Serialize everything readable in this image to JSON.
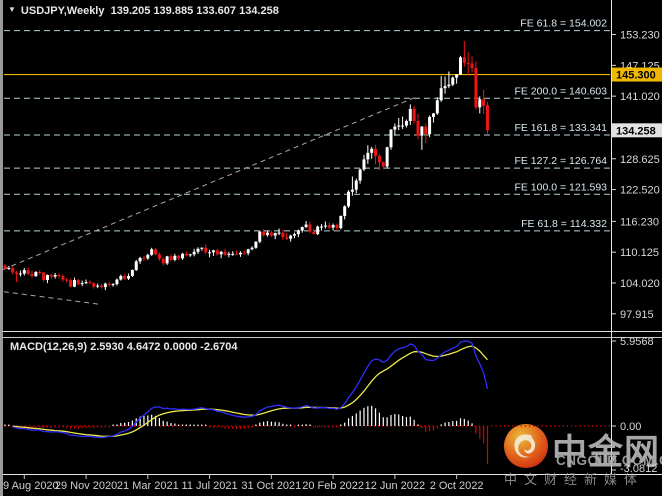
{
  "window": {
    "symbol_label": "USDJPY,Weekly",
    "ohlc_text": "139.205 139.885 133.607 134.258"
  },
  "price_axis": {
    "yellow_box": {
      "text": "145.300",
      "value": 145.3
    },
    "current_box": {
      "text": "134.258",
      "value": 134.258
    }
  },
  "watermark": {
    "brand": "中金网",
    "url": "CNGOLD.COM.CN",
    "tagline": "中文财经新媒体",
    "logo_name": "cngold-flame-logo"
  },
  "colors": {
    "up_candle": "#ffffff",
    "down_candle": "#ee1515",
    "fib_line": "#b9d2da",
    "fib_label": "#d9e8ee",
    "trendline": "#a6a6a6",
    "yellow_line": "#efb700",
    "current_box_bg": "#e2e2e2",
    "axis_text": "#d8d8d8",
    "macd_main": "#2e2eff",
    "macd_signal": "#ece84d",
    "hist_pos": "#ffffff",
    "hist_neg": "#d40000",
    "zero_line": "#cc0000"
  },
  "chart_data": {
    "type": "candlestick",
    "symbol": "USDJPY",
    "timeframe": "Weekly",
    "last_ohlc": {
      "open": 139.205,
      "high": 139.885,
      "low": 133.607,
      "close": 134.258
    },
    "price_axis_ticks": [
      "153.230",
      "147.125",
      "141.020",
      "128.625",
      "122.520",
      "116.230",
      "110.125",
      "104.020",
      "97.915"
    ],
    "fibonacci_expansion": [
      {
        "label": "FE 61.8 = 154.002",
        "price": 154.002
      },
      {
        "label": "FE 200.0 = 140.603",
        "price": 140.603
      },
      {
        "label": "FE 161.8 = 133.341",
        "price": 133.341
      },
      {
        "label": "FE 127.2 = 126.764",
        "price": 126.764
      },
      {
        "label": "FE 100.0 = 121.593",
        "price": 121.593
      },
      {
        "label": "FE 61.8 = 114.332",
        "price": 114.332
      }
    ],
    "horizontal_line_price": 145.3,
    "date_ticks": {
      "labels": [
        "9 Aug 2020",
        "29 Nov 2020",
        "21 Mar 2021",
        "11 Jul 2021",
        "31 Oct 2021",
        "20 Feb 2022",
        "12 Jun 2022",
        "2 Oct 2022"
      ],
      "week_indices": [
        5,
        21,
        37,
        53,
        69,
        85,
        101,
        117
      ]
    },
    "trendlines": [
      {
        "from_week": -0.5,
        "from_price": 106.7,
        "to_week": 106,
        "to_price": 140.7,
        "style": "dashed"
      },
      {
        "from_week": -0.3,
        "from_price": 102.3,
        "to_week": 24.6,
        "to_price": 99.8,
        "style": "dashed"
      }
    ],
    "candles_ohlc": [
      [
        107.5,
        107.8,
        106.6,
        106.9
      ],
      [
        106.9,
        107.4,
        106.6,
        107.0
      ],
      [
        107.0,
        107.3,
        105.7,
        106.1
      ],
      [
        106.1,
        106.4,
        104.2,
        105.8
      ],
      [
        105.8,
        106.5,
        105.3,
        105.9
      ],
      [
        105.9,
        107.0,
        105.5,
        106.6
      ],
      [
        106.6,
        107.1,
        105.6,
        105.8
      ],
      [
        105.8,
        106.5,
        105.1,
        105.4
      ],
      [
        105.4,
        106.4,
        105.2,
        106.2
      ],
      [
        106.2,
        106.6,
        105.6,
        106.1
      ],
      [
        106.1,
        106.2,
        104.3,
        104.6
      ],
      [
        104.6,
        105.7,
        104.0,
        105.6
      ],
      [
        105.6,
        105.8,
        104.9,
        105.3
      ],
      [
        105.3,
        106.0,
        104.9,
        105.6
      ],
      [
        105.6,
        105.9,
        104.9,
        105.4
      ],
      [
        105.4,
        105.7,
        104.3,
        104.7
      ],
      [
        104.7,
        105.1,
        104.1,
        104.6
      ],
      [
        104.6,
        104.9,
        103.2,
        103.3
      ],
      [
        103.3,
        105.1,
        103.2,
        104.6
      ],
      [
        104.6,
        104.8,
        103.6,
        103.8
      ],
      [
        103.8,
        104.5,
        103.4,
        104.0
      ],
      [
        104.0,
        104.7,
        103.8,
        104.2
      ],
      [
        104.2,
        104.6,
        103.8,
        104.0
      ],
      [
        104.0,
        104.2,
        102.9,
        103.3
      ],
      [
        103.3,
        103.9,
        103.0,
        103.5
      ],
      [
        103.5,
        103.8,
        102.9,
        103.2
      ],
      [
        103.2,
        104.1,
        102.6,
        103.9
      ],
      [
        103.9,
        104.2,
        103.2,
        103.7
      ],
      [
        103.7,
        104.0,
        103.3,
        103.8
      ],
      [
        103.8,
        104.9,
        103.5,
        104.7
      ],
      [
        104.7,
        105.7,
        104.5,
        105.4
      ],
      [
        105.4,
        105.8,
        104.6,
        104.9
      ],
      [
        104.9,
        105.9,
        104.6,
        105.4
      ],
      [
        105.4,
        106.7,
        105.2,
        106.6
      ],
      [
        106.6,
        108.6,
        106.4,
        108.3
      ],
      [
        108.3,
        109.2,
        107.8,
        109.0
      ],
      [
        109.0,
        109.4,
        108.4,
        108.9
      ],
      [
        108.9,
        109.8,
        108.6,
        109.6
      ],
      [
        109.6,
        111.0,
        109.4,
        110.7
      ],
      [
        110.7,
        110.9,
        109.5,
        109.7
      ],
      [
        109.7,
        110.1,
        108.4,
        108.8
      ],
      [
        108.8,
        109.1,
        107.5,
        107.9
      ],
      [
        107.9,
        109.4,
        107.6,
        109.3
      ],
      [
        109.3,
        109.7,
        108.3,
        108.6
      ],
      [
        108.6,
        109.8,
        108.3,
        109.4
      ],
      [
        109.4,
        109.6,
        108.6,
        108.9
      ],
      [
        108.9,
        110.0,
        108.6,
        109.8
      ],
      [
        109.8,
        110.3,
        109.3,
        109.5
      ],
      [
        109.5,
        109.8,
        109.2,
        109.7
      ],
      [
        109.7,
        110.8,
        109.3,
        110.2
      ],
      [
        110.2,
        111.1,
        109.8,
        110.8
      ],
      [
        110.8,
        111.1,
        110.4,
        111.0
      ],
      [
        111.0,
        111.7,
        109.8,
        110.1
      ],
      [
        110.1,
        110.6,
        109.1,
        110.1
      ],
      [
        110.1,
        110.6,
        109.4,
        110.5
      ],
      [
        110.5,
        110.8,
        109.4,
        109.7
      ],
      [
        109.7,
        110.4,
        108.9,
        110.2
      ],
      [
        110.2,
        110.8,
        109.4,
        109.6
      ],
      [
        109.6,
        110.2,
        109.1,
        109.8
      ],
      [
        109.8,
        110.3,
        109.4,
        109.8
      ],
      [
        109.8,
        110.5,
        109.6,
        109.7
      ],
      [
        109.7,
        110.3,
        109.2,
        110.0
      ],
      [
        110.0,
        110.4,
        109.6,
        109.9
      ],
      [
        109.9,
        110.8,
        109.5,
        110.7
      ],
      [
        110.7,
        111.3,
        110.5,
        111.0
      ],
      [
        111.0,
        112.3,
        110.8,
        112.2
      ],
      [
        112.2,
        114.3,
        111.9,
        114.2
      ],
      [
        114.2,
        114.7,
        113.2,
        113.5
      ],
      [
        113.5,
        114.3,
        113.2,
        114.0
      ],
      [
        114.0,
        114.4,
        113.1,
        113.4
      ],
      [
        113.4,
        114.0,
        112.7,
        113.9
      ],
      [
        113.9,
        114.8,
        113.5,
        114.0
      ],
      [
        114.0,
        114.5,
        112.5,
        113.1
      ],
      [
        113.1,
        113.9,
        112.5,
        112.8
      ],
      [
        112.8,
        113.6,
        112.2,
        113.4
      ],
      [
        113.4,
        114.0,
        112.9,
        113.7
      ],
      [
        113.7,
        114.6,
        113.1,
        114.4
      ],
      [
        114.4,
        115.2,
        114.0,
        115.1
      ],
      [
        115.1,
        116.3,
        114.9,
        115.6
      ],
      [
        115.6,
        116.2,
        113.9,
        114.2
      ],
      [
        114.2,
        114.8,
        113.6,
        113.7
      ],
      [
        113.7,
        115.4,
        113.5,
        115.2
      ],
      [
        115.2,
        115.7,
        114.4,
        115.2
      ],
      [
        115.2,
        116.2,
        114.8,
        115.4
      ],
      [
        115.4,
        116.0,
        114.7,
        115.0
      ],
      [
        115.0,
        115.8,
        114.4,
        115.5
      ],
      [
        115.5,
        115.8,
        114.3,
        114.9
      ],
      [
        114.9,
        117.4,
        114.6,
        117.3
      ],
      [
        117.3,
        119.4,
        116.6,
        119.2
      ],
      [
        119.2,
        122.4,
        118.9,
        122.1
      ],
      [
        122.1,
        125.1,
        121.3,
        122.5
      ],
      [
        122.5,
        124.7,
        121.8,
        124.3
      ],
      [
        124.3,
        126.7,
        123.7,
        126.5
      ],
      [
        126.5,
        129.4,
        126.2,
        128.5
      ],
      [
        128.5,
        131.3,
        127.6,
        129.8
      ],
      [
        129.8,
        131.0,
        128.6,
        130.6
      ],
      [
        130.6,
        131.4,
        127.5,
        129.2
      ],
      [
        129.2,
        129.6,
        126.4,
        127.9
      ],
      [
        127.9,
        128.1,
        126.5,
        127.1
      ],
      [
        127.1,
        131.0,
        126.7,
        130.9
      ],
      [
        130.9,
        134.5,
        130.4,
        134.4
      ],
      [
        134.4,
        135.6,
        133.2,
        135.0
      ],
      [
        135.0,
        136.7,
        134.3,
        135.2
      ],
      [
        135.2,
        137.0,
        134.5,
        135.2
      ],
      [
        135.2,
        136.4,
        134.8,
        136.1
      ],
      [
        136.1,
        139.4,
        135.3,
        138.5
      ],
      [
        138.5,
        139.1,
        135.6,
        136.1
      ],
      [
        136.1,
        137.5,
        132.5,
        133.2
      ],
      [
        133.2,
        135.1,
        130.4,
        135.0
      ],
      [
        135.0,
        135.6,
        131.7,
        133.5
      ],
      [
        133.5,
        137.2,
        132.9,
        136.9
      ],
      [
        136.9,
        137.7,
        135.8,
        137.6
      ],
      [
        137.6,
        140.8,
        137.3,
        140.2
      ],
      [
        140.2,
        145.0,
        139.9,
        142.6
      ],
      [
        142.6,
        144.9,
        141.5,
        143.0
      ],
      [
        143.0,
        145.9,
        142.6,
        143.3
      ],
      [
        143.3,
        144.9,
        143.0,
        144.7
      ],
      [
        144.7,
        145.4,
        143.5,
        145.3
      ],
      [
        145.3,
        149.0,
        145.2,
        148.7
      ],
      [
        148.7,
        151.95,
        146.9,
        147.6
      ],
      [
        147.6,
        149.7,
        145.1,
        147.5
      ],
      [
        147.5,
        148.9,
        145.7,
        146.6
      ],
      [
        146.6,
        147.9,
        138.4,
        138.8
      ],
      [
        138.8,
        141.0,
        137.6,
        140.4
      ],
      [
        140.4,
        142.3,
        137.5,
        139.1
      ],
      [
        139.205,
        139.885,
        133.607,
        134.258
      ]
    ],
    "macd": {
      "label": "MACD(12,26,9) 2.5930 4.6472 0.0000 -2.6704",
      "params": [
        12,
        26,
        9
      ],
      "current_main": 2.593,
      "current_signal": 4.6472,
      "current_zero": 0.0,
      "current_histogram": -2.6704,
      "axis_ticks": [
        {
          "text": "5.9568",
          "value": 5.9568
        },
        {
          "text": "0.00",
          "value": 0.0
        },
        {
          "text": "-3.0812",
          "value": -3.0812
        }
      ]
    }
  }
}
